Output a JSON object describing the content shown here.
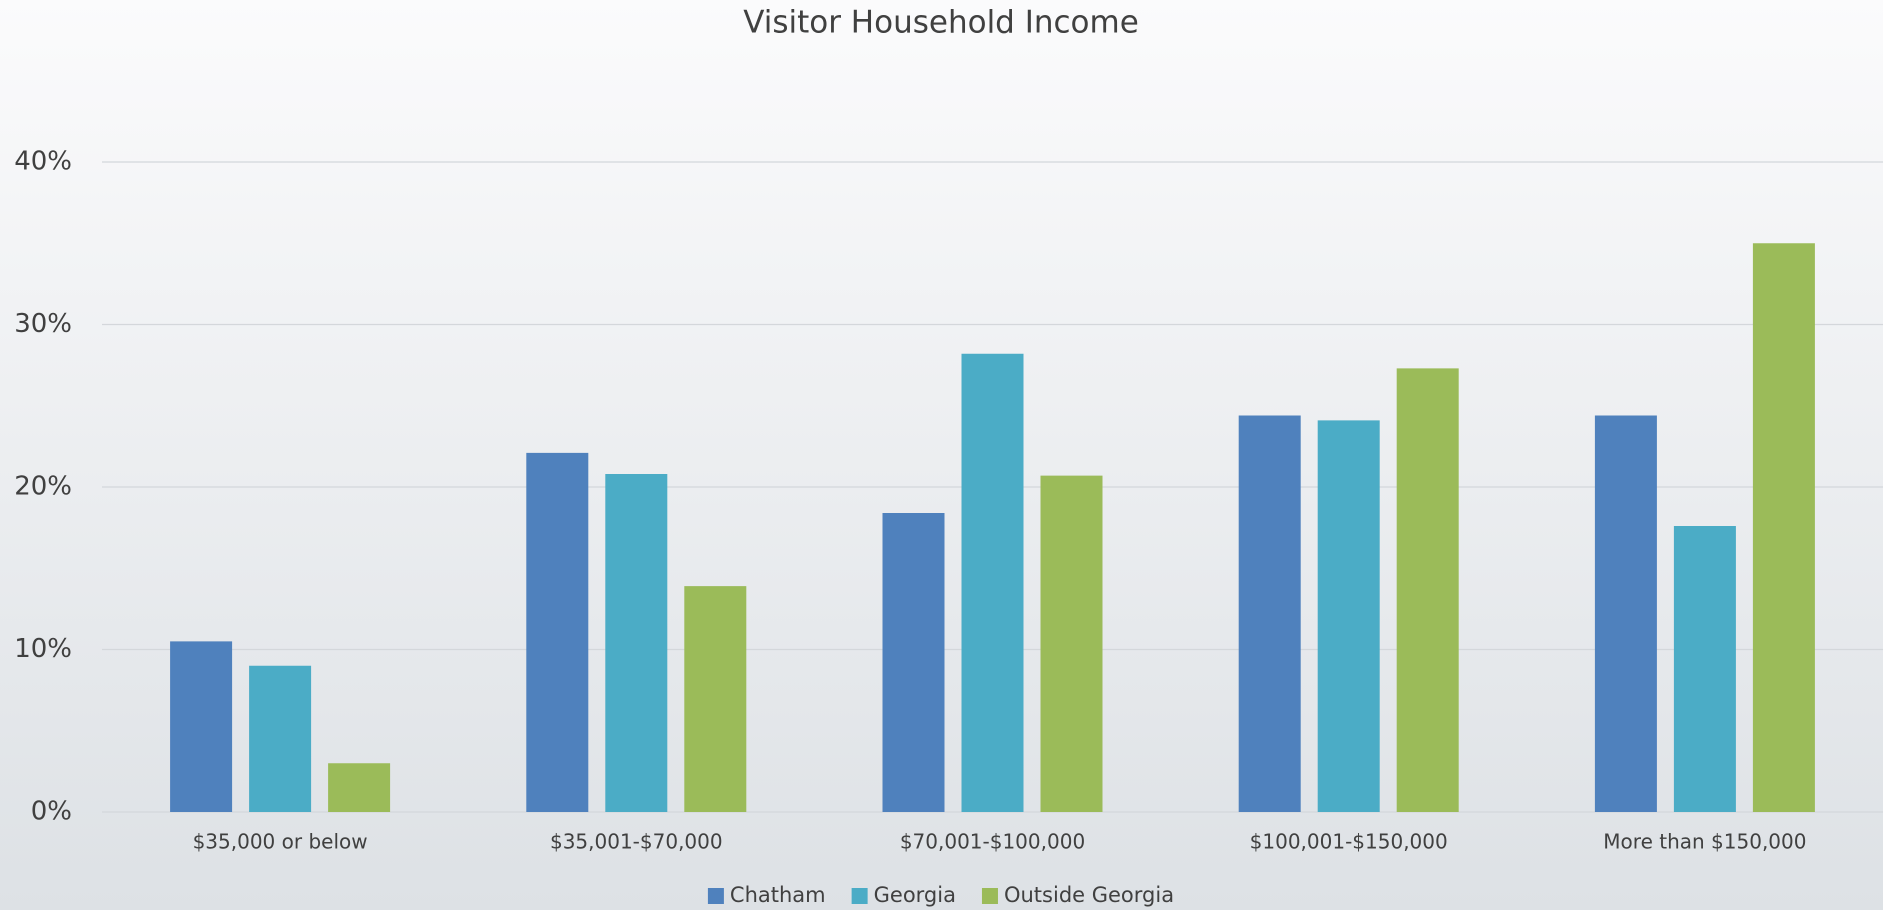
{
  "chart_data": {
    "type": "bar",
    "title": "Visitor Household Income",
    "categories": [
      "$35,000 or below",
      "$35,001-$70,000",
      "$70,001-$100,000",
      "$100,001-$150,000",
      "More than $150,000"
    ],
    "series": [
      {
        "name": "Chatham",
        "color": "#4f81bd",
        "values": [
          10.5,
          22.1,
          18.4,
          24.4,
          24.4
        ]
      },
      {
        "name": "Georgia",
        "color": "#4bacc6",
        "values": [
          9.0,
          20.8,
          28.2,
          24.1,
          17.6
        ]
      },
      {
        "name": "Outside Georgia",
        "color": "#9bbb59",
        "values": [
          3.0,
          13.9,
          20.7,
          27.3,
          35.0
        ]
      }
    ],
    "ylim": [
      0,
      40
    ],
    "yticks": [
      {
        "value": 0,
        "label": "0%"
      },
      {
        "value": 10,
        "label": "10%"
      },
      {
        "value": 20,
        "label": "20%"
      },
      {
        "value": 30,
        "label": "30%"
      },
      {
        "value": 40,
        "label": "40%"
      }
    ],
    "grid": true,
    "legend": "bottom"
  }
}
